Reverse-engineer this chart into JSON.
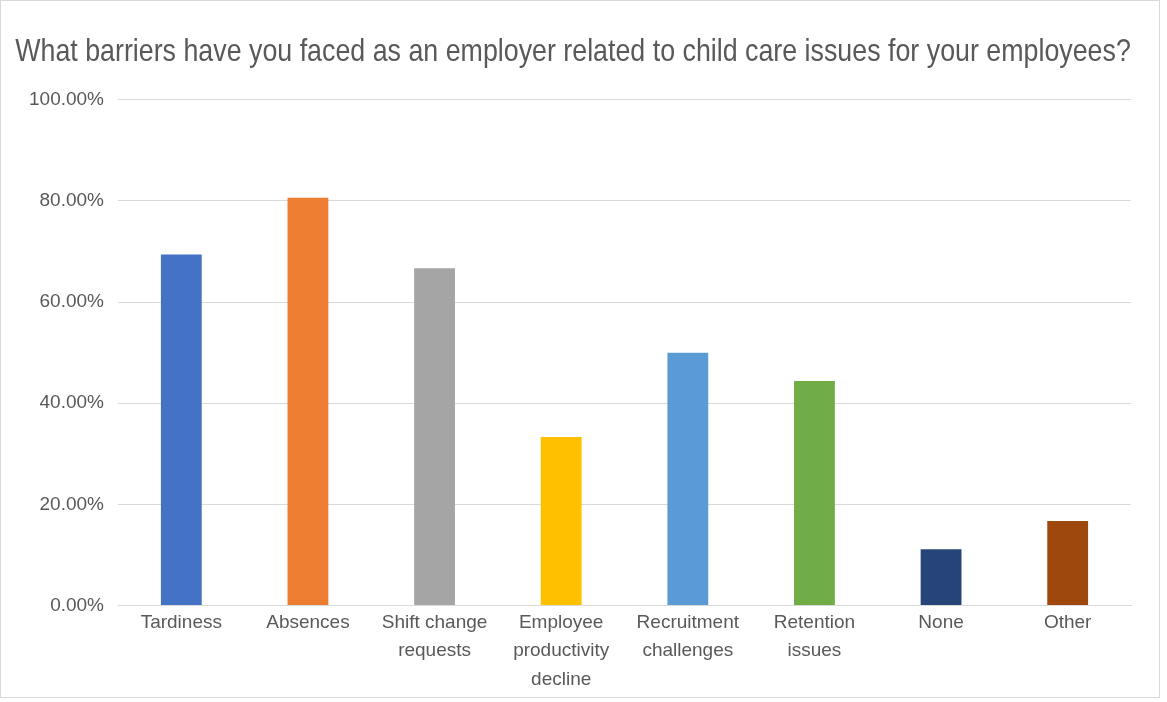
{
  "chart_data": {
    "type": "bar",
    "title": "What barriers have you faced as an employer related to child care issues for your employees?",
    "categories": [
      "Tardiness",
      "Absences",
      "Shift change requests",
      "Employee productivity decline",
      "Recruitment challenges",
      "Retention issues",
      "None",
      "Other"
    ],
    "values": [
      69.4,
      80.6,
      66.7,
      33.3,
      50.0,
      44.4,
      11.1,
      16.7
    ],
    "colors": [
      "#4472c4",
      "#ed7d31",
      "#a5a5a5",
      "#ffc000",
      "#5b9bd5",
      "#70ad47",
      "#264478",
      "#9e480e"
    ],
    "ylim": [
      0,
      100
    ],
    "yticks": [
      {
        "value": 0,
        "label": "0.00%"
      },
      {
        "value": 20,
        "label": "20.00%"
      },
      {
        "value": 40,
        "label": "40.00%"
      },
      {
        "value": 60,
        "label": "60.00%"
      },
      {
        "value": 80,
        "label": "80.00%"
      },
      {
        "value": 100,
        "label": "100.00%"
      }
    ],
    "grid": "y",
    "legend": false
  }
}
